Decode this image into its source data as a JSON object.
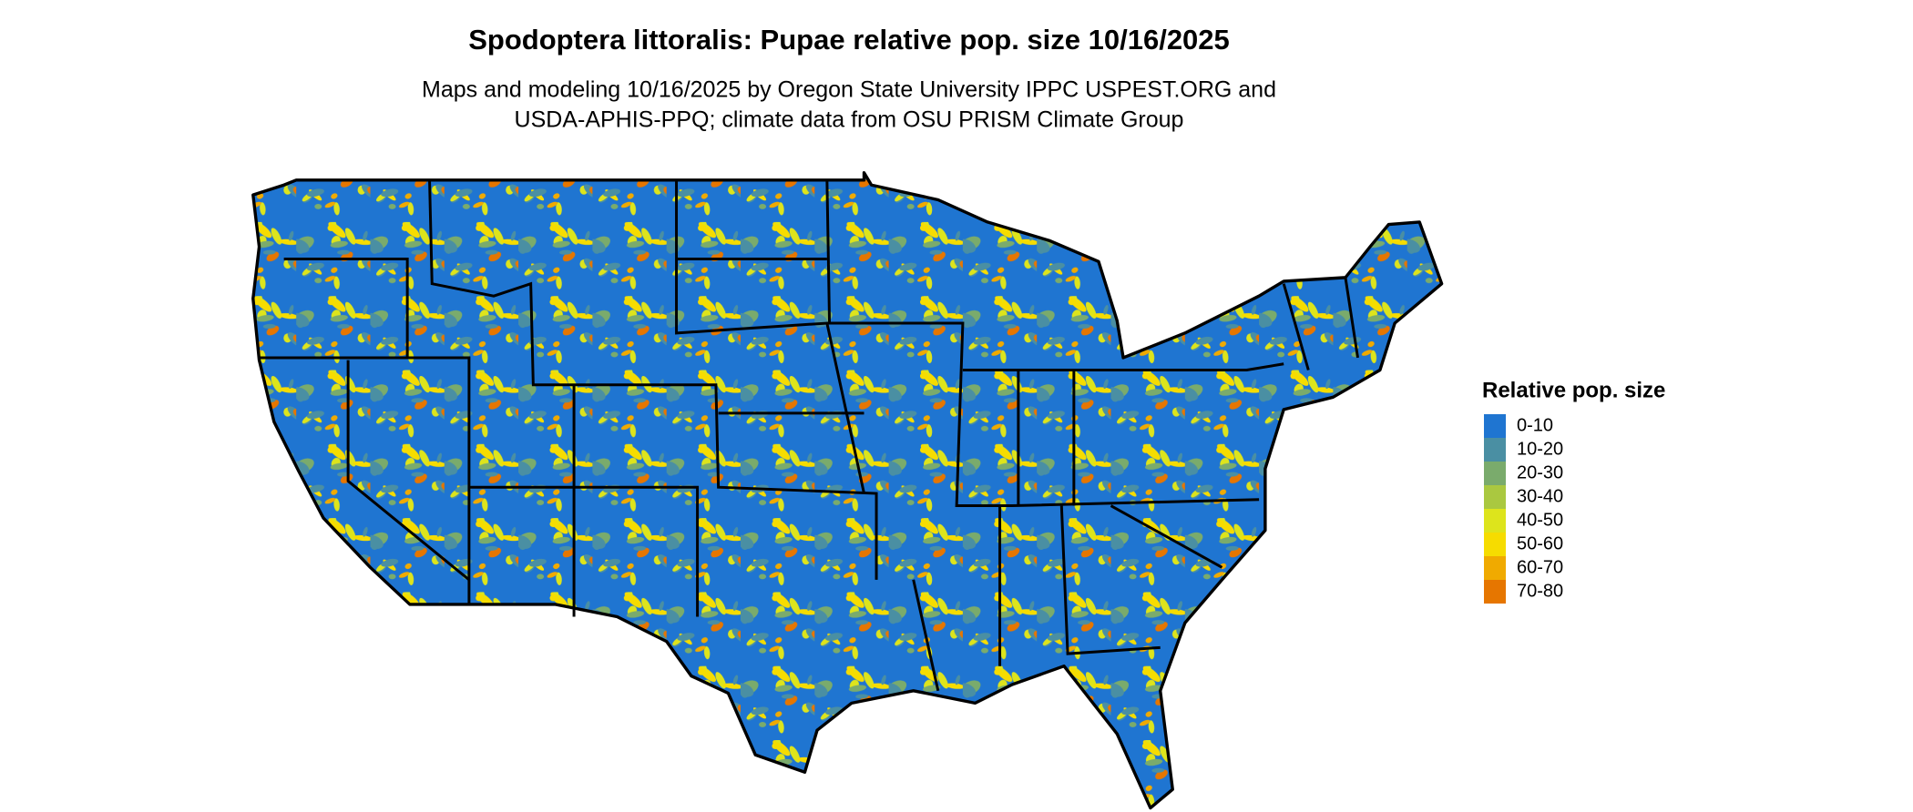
{
  "title": "Spodoptera littoralis: Pupae relative pop. size 10/16/2025",
  "subtitle": [
    "Maps and modeling 10/16/2025 by Oregon State University IPPC USPEST.ORG and",
    "USDA-APHIS-PPQ; climate data from OSU PRISM Climate Group"
  ],
  "legend": {
    "title": "Relative pop. size",
    "items": [
      {
        "label": "0-10",
        "color": "#1f75d1"
      },
      {
        "label": "10-20",
        "color": "#4a8fa3"
      },
      {
        "label": "20-30",
        "color": "#7aab6c"
      },
      {
        "label": "30-40",
        "color": "#aac840"
      },
      {
        "label": "40-50",
        "color": "#dde41c"
      },
      {
        "label": "50-60",
        "color": "#f6dc00"
      },
      {
        "label": "60-70",
        "color": "#f0aa00"
      },
      {
        "label": "70-80",
        "color": "#e67600"
      }
    ]
  }
}
